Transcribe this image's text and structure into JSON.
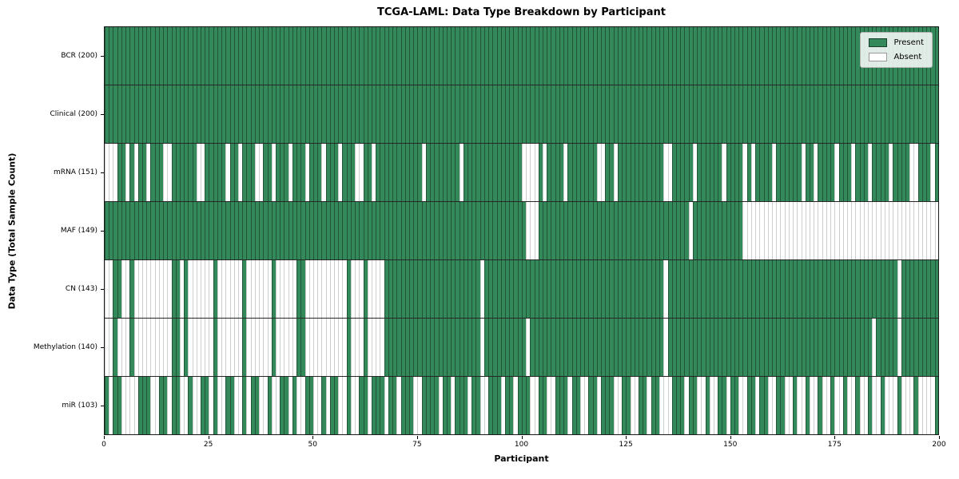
{
  "title": "TCGA-LAML: Data Type Breakdown by Participant",
  "x_axis_label": "Participant",
  "y_axis_label": "Data Type (Total Sample Count)",
  "legend": {
    "present_label": "Present",
    "absent_label": "Absent"
  },
  "colors": {
    "present": "#33895a",
    "absent": "#ffffff",
    "row_separator": "#000000",
    "legend_border": "#b3b3b3"
  },
  "chart_data": {
    "type": "heatmap",
    "title": "TCGA-LAML: Data Type Breakdown by Participant",
    "xlabel": "Participant",
    "ylabel": "Data Type (Total Sample Count)",
    "x_range": [
      0,
      200
    ],
    "x_ticks": [
      0,
      25,
      50,
      75,
      100,
      125,
      150,
      175,
      200
    ],
    "participants": 200,
    "legend_entries": [
      "Present",
      "Absent"
    ],
    "legend_position": "upper right",
    "grid": false,
    "cell_states_encoding": "runs = run-length encoded [state, count] pairs across participants 0..199; state 1 = Present (green), 0 = Absent (white)",
    "rows": [
      {
        "label": "BCR (200)",
        "data_type": "BCR",
        "present_count": 200,
        "runs": [
          [
            1,
            200
          ]
        ]
      },
      {
        "label": "Clinical (200)",
        "data_type": "Clinical",
        "present_count": 200,
        "runs": [
          [
            1,
            200
          ]
        ]
      },
      {
        "label": "mRNA (151)",
        "data_type": "mRNA",
        "present_count": 151,
        "runs": [
          [
            0,
            3
          ],
          [
            1,
            2
          ],
          [
            0,
            1
          ],
          [
            1,
            1
          ],
          [
            0,
            1
          ],
          [
            1,
            2
          ],
          [
            0,
            1
          ],
          [
            1,
            3
          ],
          [
            0,
            2
          ],
          [
            1,
            6
          ],
          [
            0,
            2
          ],
          [
            1,
            5
          ],
          [
            0,
            1
          ],
          [
            1,
            2
          ],
          [
            0,
            1
          ],
          [
            1,
            3
          ],
          [
            0,
            2
          ],
          [
            1,
            2
          ],
          [
            0,
            1
          ],
          [
            1,
            3
          ],
          [
            0,
            1
          ],
          [
            1,
            3
          ],
          [
            0,
            1
          ],
          [
            1,
            3
          ],
          [
            0,
            1
          ],
          [
            1,
            3
          ],
          [
            0,
            1
          ],
          [
            1,
            3
          ],
          [
            0,
            2
          ],
          [
            1,
            2
          ],
          [
            0,
            1
          ],
          [
            1,
            11
          ],
          [
            0,
            1
          ],
          [
            1,
            8
          ],
          [
            0,
            1
          ],
          [
            1,
            14
          ],
          [
            0,
            4
          ],
          [
            1,
            1
          ],
          [
            0,
            1
          ],
          [
            1,
            4
          ],
          [
            0,
            1
          ],
          [
            1,
            7
          ],
          [
            0,
            2
          ],
          [
            1,
            2
          ],
          [
            0,
            1
          ],
          [
            1,
            11
          ],
          [
            0,
            2
          ],
          [
            1,
            5
          ],
          [
            0,
            1
          ],
          [
            1,
            6
          ],
          [
            0,
            1
          ],
          [
            1,
            4
          ],
          [
            0,
            1
          ],
          [
            1,
            1
          ],
          [
            0,
            1
          ],
          [
            1,
            4
          ],
          [
            0,
            1
          ],
          [
            1,
            6
          ],
          [
            0,
            1
          ],
          [
            1,
            2
          ],
          [
            0,
            1
          ],
          [
            1,
            4
          ],
          [
            0,
            1
          ],
          [
            1,
            3
          ],
          [
            0,
            1
          ],
          [
            1,
            3
          ],
          [
            0,
            1
          ],
          [
            1,
            4
          ],
          [
            0,
            1
          ],
          [
            1,
            4
          ],
          [
            0,
            2
          ],
          [
            1,
            3
          ],
          [
            0,
            1
          ],
          [
            1,
            1
          ]
        ]
      },
      {
        "label": "MAF (149)",
        "data_type": "MAF",
        "present_count": 149,
        "runs": [
          [
            1,
            101
          ],
          [
            0,
            3
          ],
          [
            1,
            36
          ],
          [
            0,
            1
          ],
          [
            1,
            12
          ],
          [
            0,
            47
          ]
        ]
      },
      {
        "label": "CN (143)",
        "data_type": "CN",
        "present_count": 143,
        "runs": [
          [
            0,
            2
          ],
          [
            1,
            2
          ],
          [
            0,
            2
          ],
          [
            1,
            1
          ],
          [
            0,
            9
          ],
          [
            1,
            2
          ],
          [
            0,
            1
          ],
          [
            1,
            1
          ],
          [
            0,
            6
          ],
          [
            1,
            1
          ],
          [
            0,
            6
          ],
          [
            1,
            1
          ],
          [
            0,
            6
          ],
          [
            1,
            1
          ],
          [
            0,
            5
          ],
          [
            1,
            2
          ],
          [
            0,
            10
          ],
          [
            1,
            1
          ],
          [
            0,
            3
          ],
          [
            1,
            1
          ],
          [
            0,
            4
          ],
          [
            1,
            23
          ],
          [
            0,
            1
          ],
          [
            1,
            43
          ],
          [
            0,
            1
          ],
          [
            1,
            55
          ],
          [
            0,
            1
          ],
          [
            1,
            9
          ]
        ]
      },
      {
        "label": "Methylation (140)",
        "data_type": "Methylation",
        "present_count": 140,
        "runs": [
          [
            0,
            2
          ],
          [
            1,
            1
          ],
          [
            0,
            3
          ],
          [
            1,
            1
          ],
          [
            0,
            9
          ],
          [
            1,
            2
          ],
          [
            0,
            1
          ],
          [
            1,
            1
          ],
          [
            0,
            6
          ],
          [
            1,
            1
          ],
          [
            0,
            6
          ],
          [
            1,
            1
          ],
          [
            0,
            6
          ],
          [
            1,
            1
          ],
          [
            0,
            5
          ],
          [
            1,
            2
          ],
          [
            0,
            10
          ],
          [
            1,
            1
          ],
          [
            0,
            3
          ],
          [
            1,
            1
          ],
          [
            0,
            4
          ],
          [
            1,
            23
          ],
          [
            0,
            1
          ],
          [
            1,
            10
          ],
          [
            0,
            1
          ],
          [
            1,
            32
          ],
          [
            0,
            1
          ],
          [
            1,
            49
          ],
          [
            0,
            1
          ],
          [
            1,
            5
          ],
          [
            0,
            1
          ],
          [
            1,
            9
          ]
        ]
      },
      {
        "label": "miR (103)",
        "data_type": "miR",
        "present_count": 103,
        "runs": [
          [
            1,
            1
          ],
          [
            0,
            1
          ],
          [
            1,
            2
          ],
          [
            0,
            4
          ],
          [
            1,
            3
          ],
          [
            0,
            2
          ],
          [
            1,
            2
          ],
          [
            0,
            1
          ],
          [
            1,
            2
          ],
          [
            0,
            2
          ],
          [
            1,
            1
          ],
          [
            0,
            2
          ],
          [
            1,
            2
          ],
          [
            0,
            1
          ],
          [
            1,
            1
          ],
          [
            0,
            2
          ],
          [
            1,
            2
          ],
          [
            0,
            2
          ],
          [
            1,
            1
          ],
          [
            0,
            1
          ],
          [
            1,
            2
          ],
          [
            0,
            2
          ],
          [
            1,
            1
          ],
          [
            0,
            2
          ],
          [
            1,
            2
          ],
          [
            0,
            1
          ],
          [
            1,
            1
          ],
          [
            0,
            2
          ],
          [
            1,
            2
          ],
          [
            0,
            2
          ],
          [
            1,
            1
          ],
          [
            0,
            1
          ],
          [
            1,
            2
          ],
          [
            0,
            2
          ],
          [
            1,
            1
          ],
          [
            0,
            2
          ],
          [
            1,
            2
          ],
          [
            0,
            1
          ],
          [
            1,
            3
          ],
          [
            0,
            1
          ],
          [
            1,
            2
          ],
          [
            0,
            1
          ],
          [
            1,
            3
          ],
          [
            0,
            2
          ],
          [
            1,
            4
          ],
          [
            0,
            1
          ],
          [
            1,
            2
          ],
          [
            0,
            1
          ],
          [
            1,
            3
          ],
          [
            0,
            1
          ],
          [
            1,
            2
          ],
          [
            0,
            2
          ],
          [
            1,
            3
          ],
          [
            0,
            1
          ],
          [
            1,
            2
          ],
          [
            0,
            1
          ],
          [
            1,
            3
          ],
          [
            0,
            2
          ],
          [
            1,
            2
          ],
          [
            0,
            2
          ],
          [
            1,
            3
          ],
          [
            0,
            1
          ],
          [
            1,
            2
          ],
          [
            0,
            2
          ],
          [
            1,
            2
          ],
          [
            0,
            1
          ],
          [
            1,
            3
          ],
          [
            0,
            2
          ],
          [
            1,
            2
          ],
          [
            0,
            2
          ],
          [
            1,
            2
          ],
          [
            0,
            1
          ],
          [
            1,
            2
          ],
          [
            0,
            1
          ],
          [
            0,
            2
          ],
          [
            1,
            3
          ],
          [
            0,
            1
          ],
          [
            1,
            2
          ],
          [
            0,
            2
          ],
          [
            1,
            1
          ],
          [
            0,
            2
          ],
          [
            1,
            2
          ],
          [
            0,
            1
          ],
          [
            1,
            2
          ],
          [
            0,
            2
          ],
          [
            1,
            2
          ],
          [
            0,
            1
          ],
          [
            1,
            2
          ],
          [
            0,
            2
          ],
          [
            1,
            2
          ],
          [
            0,
            2
          ],
          [
            1,
            1
          ],
          [
            0,
            2
          ],
          [
            1,
            1
          ],
          [
            0,
            2
          ],
          [
            1,
            1
          ],
          [
            0,
            2
          ],
          [
            1,
            1
          ],
          [
            0,
            2
          ],
          [
            1,
            1
          ],
          [
            0,
            2
          ],
          [
            1,
            1
          ],
          [
            0,
            2
          ],
          [
            1,
            1
          ],
          [
            0,
            2
          ],
          [
            1,
            1
          ],
          [
            0,
            3
          ],
          [
            1,
            1
          ],
          [
            0,
            3
          ],
          [
            1,
            1
          ],
          [
            0,
            4
          ],
          [
            1,
            1
          ]
        ]
      }
    ]
  }
}
